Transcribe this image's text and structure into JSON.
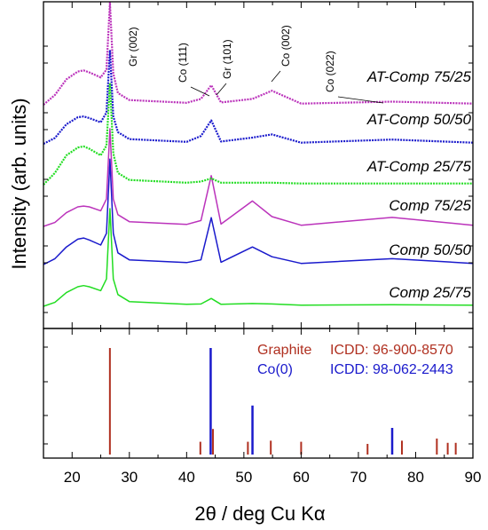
{
  "chart_data": {
    "type": "line",
    "xlabel": "2θ / deg Cu Kα",
    "ylabel": "Intensity (arb. units)",
    "xlim": [
      15,
      90
    ],
    "x_ticks": [
      20,
      30,
      40,
      50,
      60,
      70,
      80,
      90
    ],
    "colors": {
      "Comp 25/75": "#22dd22",
      "Comp 50/50": "#1a1acc",
      "Comp 75/25": "#bb33bb",
      "AT-Comp 25/75": "#22dd22",
      "AT-Comp 50/50": "#1a1acc",
      "AT-Comp 75/25": "#bb33bb",
      "graphite": "#b03020",
      "cobalt": "#1a1acc"
    },
    "patterns": [
      {
        "name": "Comp 25/75",
        "x": [
          15,
          17,
          19,
          21,
          22,
          23,
          25,
          26,
          26.6,
          27.2,
          28,
          30,
          40,
          42.5,
          44.3,
          46,
          51.5,
          54.9,
          60,
          75.9,
          90
        ],
        "y": [
          0,
          1,
          3.5,
          5,
          5.3,
          5,
          4,
          7,
          25,
          7,
          3,
          1.2,
          0.5,
          0.6,
          2,
          0.5,
          0.7,
          0.6,
          0.3,
          0.4,
          0.3
        ]
      },
      {
        "name": "Comp 50/50",
        "x": [
          15,
          17,
          19,
          21,
          22,
          23,
          25,
          26,
          26.6,
          27.2,
          28,
          30,
          40,
          42.5,
          44.3,
          46,
          51.5,
          54.9,
          60,
          75.9,
          90
        ],
        "y": [
          0,
          1.5,
          4.5,
          6.5,
          6.8,
          6.3,
          5,
          8,
          27,
          8,
          3,
          1.2,
          0.5,
          1.2,
          12,
          0.6,
          4.5,
          2,
          0.3,
          1.5,
          0.3
        ]
      },
      {
        "name": "Comp 75/25",
        "x": [
          15,
          17,
          19,
          21,
          22,
          23,
          25,
          26,
          26.6,
          27.2,
          28,
          30,
          40,
          42.5,
          44.3,
          46,
          51.5,
          54.9,
          60,
          75.9,
          90
        ],
        "y": [
          0,
          1,
          3.5,
          5,
          5.2,
          5,
          4,
          7,
          25,
          7,
          3,
          1.2,
          0.5,
          1.5,
          13,
          0.6,
          6.5,
          2.5,
          0.3,
          2.3,
          0.3
        ]
      },
      {
        "name": "AT-Comp 25/75",
        "x": [
          15,
          17,
          19,
          21,
          22,
          23,
          25,
          26,
          26.6,
          27.2,
          28,
          30,
          40,
          42.5,
          44.3,
          46,
          51.5,
          54.9,
          60,
          75.9,
          90
        ],
        "y": [
          0,
          3,
          7.5,
          9.5,
          9.8,
          9.2,
          7.5,
          10,
          26,
          8,
          3,
          1.2,
          0.5,
          0.8,
          1.6,
          0.5,
          0.5,
          0.5,
          0.3,
          0.3,
          0.3
        ]
      },
      {
        "name": "AT-Comp 50/50",
        "x": [
          15,
          17,
          19,
          21,
          22,
          23,
          25,
          26,
          26.6,
          27.2,
          28,
          30,
          40,
          42.5,
          44.3,
          46,
          51.5,
          54.9,
          60,
          75.9,
          90
        ],
        "y": [
          0,
          1.5,
          5,
          6.8,
          7,
          6.6,
          5.5,
          8,
          24,
          7,
          3,
          1.2,
          0.5,
          2,
          6,
          0.6,
          1.6,
          2.4,
          0.3,
          1.1,
          0.3
        ]
      },
      {
        "name": "AT-Comp 75/25",
        "x": [
          15,
          17,
          19,
          21,
          22,
          23,
          25,
          26,
          26.6,
          27.2,
          28,
          30,
          40,
          42.5,
          44.3,
          46,
          51.5,
          54.9,
          60,
          75.9,
          90
        ],
        "y": [
          0,
          2.5,
          6.5,
          8.5,
          8.8,
          8.3,
          7,
          9,
          28,
          8,
          3,
          1.2,
          0.5,
          1.5,
          5,
          0.6,
          1.5,
          3.6,
          0.3,
          0.8,
          0.3
        ]
      }
    ],
    "peak_labels": [
      "Gr (002)",
      "Co (111)",
      "Gr (101)",
      "Co (002)",
      "Co (022)"
    ],
    "reference": {
      "graphite": {
        "label": "Graphite",
        "icdd": "ICDD: 96-900-8570",
        "positions": [
          26.6,
          42.4,
          44.6,
          50.7,
          54.7,
          60.0,
          71.6,
          77.6,
          83.7,
          85.6,
          87.0
        ],
        "intensities": [
          100,
          12,
          24,
          12,
          13,
          12,
          10,
          13,
          15,
          11,
          11
        ]
      },
      "cobalt": {
        "label": "Co(0)",
        "icdd": "ICDD: 98-062-2443",
        "positions": [
          44.2,
          51.5,
          75.9
        ],
        "intensities": [
          100,
          46,
          25
        ]
      }
    }
  }
}
